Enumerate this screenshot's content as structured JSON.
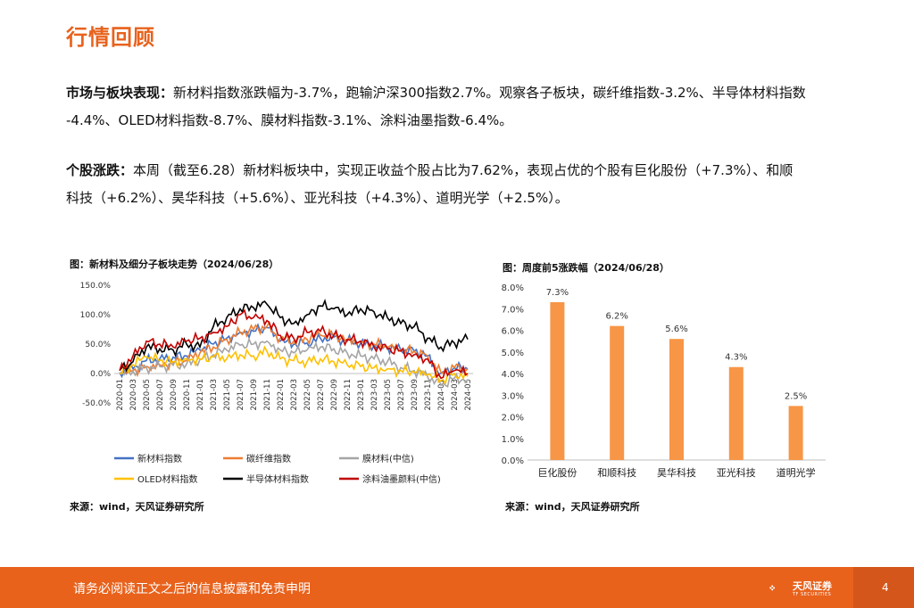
{
  "page_title": "行情回顾",
  "para1": {
    "label": "市场与板块表现：",
    "line1_rest": "新材料指数涨跌幅为-3.7%，跑输沪深300指数2.7%。观察各子板块，碳纤维指数-3.2%、半导体材料指数",
    "line2": "-4.4%、OLED材料指数-8.7%、膜材料指数-3.1%、涂料油墨指数-6.4%。"
  },
  "para2": {
    "label": "个股涨跌：",
    "line1_rest": "本周（截至6.28）新材料板块中，实现正收益个股占比为7.62%，表现占优的个股有巨化股份（+7.3%）、和顺",
    "line2": "科技（+6.2%）、昊华科技（+5.6%）、亚光科技（+4.3%）、道明光学（+2.5%）。"
  },
  "left_chart": {
    "caption": "图：新材料及细分子板块走势（2024/06/28）",
    "source": "来源：wind，天风证券研究所"
  },
  "right_chart": {
    "caption": "图：周度前5涨跌幅（2024/06/28）",
    "source": "来源：wind，天风证券研究所"
  },
  "footer": {
    "disclaimer": "请务必阅读正文之后的信息披露和免责申明",
    "logo_name": "天风证券",
    "logo_sub": "TF SECURITIES",
    "page_number": "4"
  },
  "chart_data": [
    {
      "type": "line",
      "title": "新材料及细分子板块走势（2024/06/28）",
      "x": [
        "2020-01",
        "2020-03",
        "2020-05",
        "2020-07",
        "2020-09",
        "2020-11",
        "2021-01",
        "2021-03",
        "2021-05",
        "2021-07",
        "2021-09",
        "2021-11",
        "2022-01",
        "2022-03",
        "2022-05",
        "2022-07",
        "2022-09",
        "2022-11",
        "2023-01",
        "2023-03",
        "2023-05",
        "2023-07",
        "2023-09",
        "2023-11",
        "2024-01",
        "2024-03",
        "2024-05"
      ],
      "ylim": [
        -50,
        150
      ],
      "yticks": [
        "-50.0%",
        "0.0%",
        "50.0%",
        "100.0%",
        "150.0%"
      ],
      "series": [
        {
          "name": "新材料指数",
          "color": "#4472c4",
          "values": [
            2,
            8,
            22,
            25,
            28,
            30,
            40,
            50,
            60,
            70,
            72,
            78,
            55,
            50,
            52,
            60,
            62,
            55,
            52,
            48,
            45,
            40,
            38,
            30,
            0,
            10,
            8
          ]
        },
        {
          "name": "碳纤维指数",
          "color": "#ed7d31",
          "values": [
            0,
            5,
            12,
            15,
            18,
            22,
            35,
            45,
            58,
            70,
            75,
            80,
            60,
            55,
            58,
            65,
            66,
            58,
            55,
            50,
            45,
            40,
            38,
            30,
            2,
            10,
            8
          ]
        },
        {
          "name": "膜材料(中信)",
          "color": "#a5a5a5",
          "values": [
            0,
            4,
            10,
            12,
            14,
            16,
            24,
            32,
            40,
            48,
            50,
            55,
            40,
            35,
            40,
            45,
            42,
            35,
            30,
            25,
            20,
            10,
            5,
            -5,
            -20,
            -8,
            -10
          ]
        },
        {
          "name": "OLED材料指数",
          "color": "#ffc000",
          "values": [
            0,
            15,
            28,
            22,
            20,
            25,
            24,
            28,
            25,
            32,
            30,
            38,
            25,
            22,
            20,
            25,
            20,
            15,
            12,
            10,
            8,
            5,
            2,
            -2,
            -12,
            0,
            -5
          ]
        },
        {
          "name": "半导体材料指数",
          "color": "#000000",
          "values": [
            5,
            20,
            45,
            42,
            40,
            50,
            45,
            80,
            95,
            110,
            112,
            118,
            95,
            85,
            100,
            115,
            110,
            100,
            110,
            105,
            95,
            85,
            80,
            60,
            45,
            52,
            58
          ]
        },
        {
          "name": "涂料油墨颜料(中信)",
          "color": "#c00000",
          "values": [
            5,
            30,
            55,
            50,
            45,
            55,
            60,
            70,
            80,
            100,
            95,
            90,
            65,
            60,
            70,
            72,
            65,
            58,
            55,
            45,
            42,
            38,
            32,
            25,
            -8,
            5,
            0
          ]
        }
      ]
    },
    {
      "type": "bar",
      "title": "周度前5涨跌幅（2024/06/28）",
      "categories": [
        "巨化股份",
        "和顺科技",
        "昊华科技",
        "亚光科技",
        "道明光学"
      ],
      "values": [
        7.3,
        6.2,
        5.6,
        4.3,
        2.5
      ],
      "labels": [
        "7.3%",
        "6.2%",
        "5.6%",
        "4.3%",
        "2.5%"
      ],
      "ylim": [
        0,
        8
      ],
      "yticks": [
        "0.0%",
        "1.0%",
        "2.0%",
        "3.0%",
        "4.0%",
        "5.0%",
        "6.0%",
        "7.0%",
        "8.0%"
      ],
      "color": "#f79646"
    }
  ]
}
